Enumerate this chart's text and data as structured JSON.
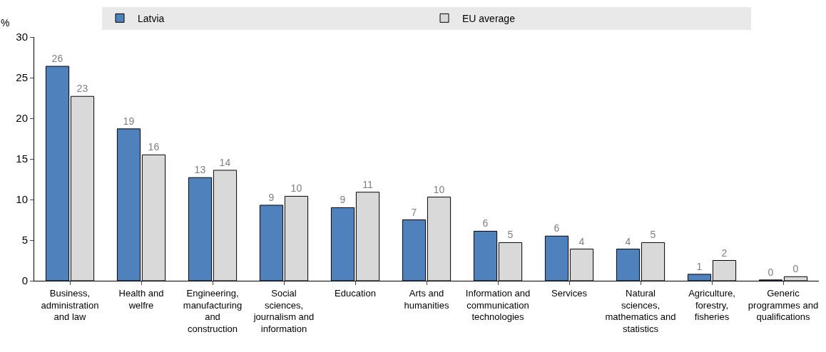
{
  "chart_data": {
    "type": "bar",
    "ylabel": "%",
    "categories": [
      "Business, administration and law",
      "Health and welfre",
      "Engineering, manufacturing and construction",
      "Social sciences, journalism and information",
      "Education",
      "Arts and humanities",
      "Information and communication technologies",
      "Services",
      "Natural sciences, mathematics and statistics",
      "Agriculture, forestry, fisheries",
      "Generic programmes and qualifications"
    ],
    "series": [
      {
        "name": "Latvia",
        "color": "#4f81bd",
        "values": [
          26.4,
          18.7,
          12.7,
          9.3,
          9.0,
          7.5,
          6.1,
          5.5,
          3.9,
          0.8,
          0.1
        ],
        "value_labels": [
          "26",
          "19",
          "13",
          "9",
          "9",
          "7",
          "6",
          "6",
          "4",
          "1",
          "0"
        ]
      },
      {
        "name": "EU average",
        "color": "#d9d9d9",
        "values": [
          22.7,
          15.5,
          13.6,
          10.4,
          10.9,
          10.3,
          4.7,
          3.9,
          4.7,
          2.5,
          0.5
        ],
        "value_labels": [
          "23",
          "16",
          "14",
          "10",
          "11",
          "10",
          "5",
          "4",
          "5",
          "2",
          "0"
        ]
      }
    ],
    "ylim": [
      0,
      30
    ],
    "yticks": [
      0,
      5,
      10,
      15,
      20,
      25,
      30
    ],
    "grid": false,
    "legend": "top"
  }
}
